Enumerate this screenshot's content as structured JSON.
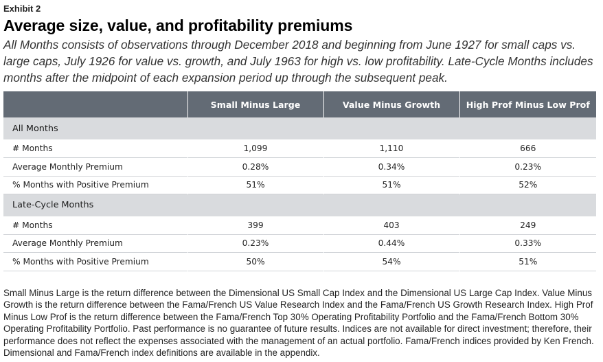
{
  "exhibit_label": "Exhibit 2",
  "title": "Average size, value, and profitability premiums",
  "subtitle": "All Months consists of observations through December 2018 and beginning from June 1927 for small caps vs. large caps, July 1926 for value vs. growth, and July 1963 for high vs. low profitability. Late-Cycle Months includes months after the midpoint of each expansion period up through the subsequent peak.",
  "table": {
    "columns": [
      "",
      "Small Minus Large",
      "Value Minus Growth",
      "High Prof Minus Low Prof"
    ],
    "sections": [
      {
        "name": "All Months",
        "rows": [
          {
            "label": "# Months",
            "values": [
              "1,099",
              "1,110",
              "666"
            ]
          },
          {
            "label": "Average Monthly Premium",
            "values": [
              "0.28%",
              "0.34%",
              "0.23%"
            ]
          },
          {
            "label": "% Months with Positive Premium",
            "values": [
              "51%",
              "51%",
              "52%"
            ]
          }
        ]
      },
      {
        "name": "Late-Cycle Months",
        "rows": [
          {
            "label": "# Months",
            "values": [
              "399",
              "403",
              "249"
            ]
          },
          {
            "label": "Average Monthly Premium",
            "values": [
              "0.23%",
              "0.44%",
              "0.33%"
            ]
          },
          {
            "label": "% Months with Positive Premium",
            "values": [
              "50%",
              "54%",
              "51%"
            ]
          }
        ]
      }
    ]
  },
  "footnote": "Small Minus Large is the return difference between the Dimensional US Small Cap Index and the Dimensional US Large Cap Index. Value Minus Growth is the return difference between the Fama/French US Value Research Index and the Fama/French US Growth Research Index. High Prof Minus Low Prof is the return difference between the Fama/French Top 30% Operating Profitability Portfolio and the Fama/French Bottom 30% Operating Profitability Portfolio. Past performance is no guarantee of future results. Indices are not available for direct investment; therefore, their performance does not reflect the expenses associated with the management of an actual portfolio. Fama/French indices provided by Ken French. Dimensional and Fama/French index definitions are available in the appendix.",
  "colors": {
    "header_bg": "#636b75",
    "section_bg": "#d9dbde",
    "row_divider": "#cfd2d6"
  }
}
